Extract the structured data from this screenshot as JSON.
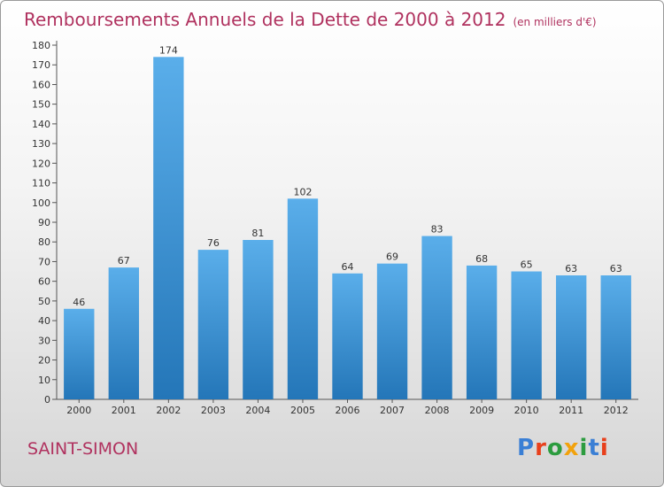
{
  "title": "Remboursements Annuels de la Dette de 2000 à 2012",
  "subtitle": "(en milliers d'€)",
  "commune": "SAINT-SIMON",
  "logo": {
    "text": "Proxiti",
    "letter_colors": [
      "#3a7fd5",
      "#e8401c",
      "#2c9c3f",
      "#f2a20c",
      "#2c9c3f",
      "#3a7fd5",
      "#e8401c"
    ]
  },
  "colors": {
    "title": "#b0325f",
    "bar_top": "#5aaeea",
    "bar_bottom": "#2476b8"
  },
  "chart_data": {
    "type": "bar",
    "categories": [
      "2000",
      "2001",
      "2002",
      "2003",
      "2004",
      "2005",
      "2006",
      "2007",
      "2008",
      "2009",
      "2010",
      "2011",
      "2012"
    ],
    "values": [
      46,
      67,
      174,
      76,
      81,
      102,
      64,
      69,
      83,
      68,
      65,
      63,
      63
    ],
    "title": "Remboursements Annuels de la Dette de 2000 à 2012",
    "subtitle": "(en milliers d'€)",
    "ylim": [
      0,
      180
    ],
    "yticks": [
      0,
      10,
      20,
      30,
      40,
      50,
      60,
      70,
      80,
      90,
      100,
      110,
      120,
      130,
      140,
      150,
      160,
      170,
      180
    ],
    "grid": false,
    "legend": "none"
  }
}
